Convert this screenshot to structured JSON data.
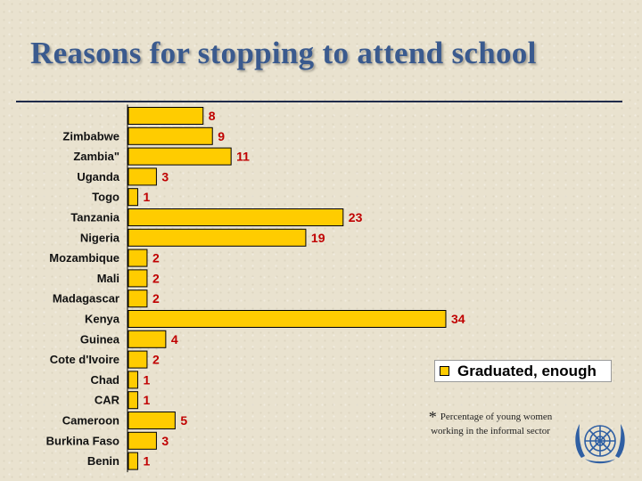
{
  "title": "Reasons for stopping to attend school",
  "legend": {
    "label": "Graduated, enough",
    "color": "#ffcc00"
  },
  "footnote": {
    "marker": "*",
    "text": "Percentage of young women working in the informal sector"
  },
  "logo": {
    "icon": "un-style-emblem-icon",
    "color": "#2f5fa3"
  },
  "chart_data": {
    "type": "bar",
    "orientation": "horizontal",
    "title": "",
    "xlabel": "",
    "ylabel": "",
    "xlim": [
      0,
      34
    ],
    "grid": false,
    "legend_position": "bottom-right",
    "bar_color": "#ffcc00",
    "label_color": "#c00000",
    "categories": [
      "",
      "Zimbabwe",
      "Zambia\"",
      "Uganda",
      "Togo",
      "Tanzania",
      "Nigeria",
      "Mozambique",
      "Mali",
      "Madagascar",
      "Kenya",
      "Guinea",
      "Cote d'Ivoire",
      "Chad",
      "CAR",
      "Cameroon",
      "Burkina Faso",
      "Benin"
    ],
    "series": [
      {
        "name": "Graduated, enough",
        "values": [
          8,
          9,
          11,
          3,
          1,
          23,
          19,
          2,
          2,
          2,
          34,
          4,
          2,
          1,
          1,
          5,
          3,
          1
        ]
      }
    ]
  }
}
